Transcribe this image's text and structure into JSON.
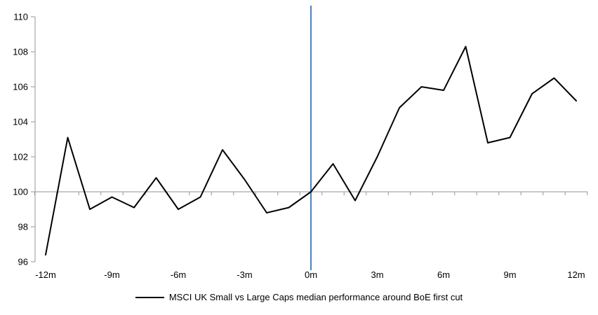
{
  "chart_data": {
    "type": "line",
    "title": "",
    "x": [
      -12,
      -11,
      -10,
      -9,
      -8,
      -7,
      -6,
      -5,
      -4,
      -3,
      -2,
      -1,
      0,
      1,
      2,
      3,
      4,
      5,
      6,
      7,
      8,
      9,
      10,
      11,
      12
    ],
    "series": [
      {
        "name": "MSCI UK Small vs Large Caps median performance around BoE first cut",
        "color": "#000000",
        "values": [
          96.4,
          103.1,
          99.0,
          99.7,
          99.1,
          100.8,
          99.0,
          99.7,
          102.4,
          100.7,
          98.8,
          99.1,
          100.0,
          101.6,
          99.5,
          102.0,
          104.8,
          106.0,
          105.8,
          108.3,
          102.8,
          103.1,
          105.6,
          106.5,
          105.2
        ]
      }
    ],
    "x_major_ticks": [
      -12,
      -9,
      -6,
      -3,
      0,
      3,
      6,
      9,
      12
    ],
    "x_major_labels": [
      "-12m",
      "-9m",
      "-6m",
      "-3m",
      "0m",
      "3m",
      "6m",
      "9m",
      "12m"
    ],
    "y_ticks": [
      96,
      98,
      100,
      102,
      104,
      106,
      108,
      110
    ],
    "ylim": [
      96,
      110
    ],
    "xlim": [
      -12.5,
      12.5
    ],
    "baseline_value": 100,
    "event_line": {
      "x": 0,
      "color": "#4F81BD"
    },
    "axis_color": "#a6a6a6",
    "grid": false,
    "legend_position": "bottom"
  },
  "legend": {
    "label": "MSCI UK Small vs Large Caps median performance around BoE first cut",
    "swatch_color": "#000000"
  }
}
